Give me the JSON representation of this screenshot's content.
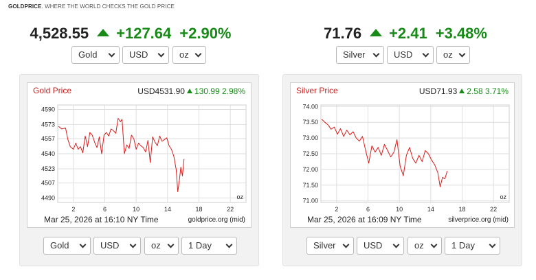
{
  "brand": {
    "name": "GOLDPRICE",
    "tagline": ". WHERE THE WORLD CHECKS THE GOLD PRICE"
  },
  "colors": {
    "up": "#178a17",
    "line": "#dd1a1a",
    "title": "#cc1f1f"
  },
  "gold": {
    "price": "4,528.55",
    "change": "+127.64",
    "percent": "+2.90%",
    "arrow_icon": "up-arrow-icon",
    "top_selects": {
      "metal": "Gold",
      "currency": "USD",
      "unit": "oz"
    },
    "chart": {
      "title": "Gold Price",
      "quote": "USD4531.90",
      "change": "130.99",
      "percent": "2.98%",
      "unit_label": "oz",
      "timestamp": "Mar 25, 2026 at 16:10 NY Time",
      "source": "goldprice.org (mid)"
    },
    "bottom_selects": {
      "metal": "Gold",
      "currency": "USD",
      "unit": "oz",
      "period": "1 Day"
    }
  },
  "silver": {
    "price": "71.76",
    "change": "+2.41",
    "percent": "+3.48%",
    "arrow_icon": "up-arrow-icon",
    "top_selects": {
      "metal": "Silver",
      "currency": "USD",
      "unit": "oz"
    },
    "chart": {
      "title": "Silver Price",
      "quote": "USD71.93",
      "change": "2.58",
      "percent": "3.71%",
      "unit_label": "oz",
      "timestamp": "Mar 25, 2026 at 16:09 NY Time",
      "source": "silverprice.org (mid)"
    },
    "bottom_selects": {
      "metal": "Silver",
      "currency": "USD",
      "unit": "oz",
      "period": "1 Day"
    }
  },
  "chart_data": [
    {
      "type": "line",
      "title": "Gold Price",
      "xlim": [
        0,
        24
      ],
      "ylim": [
        4485,
        4595
      ],
      "x_ticks": [
        "2",
        "6",
        "10",
        "14",
        "18",
        "22"
      ],
      "x_tick_values": [
        2,
        6,
        10,
        14,
        18,
        22
      ],
      "y_ticks": [
        "4590",
        "4573",
        "4557",
        "4540",
        "4523",
        "4507",
        "4490"
      ],
      "y_tick_values": [
        4590,
        4573,
        4557,
        4540,
        4523,
        4507,
        4490
      ],
      "grid": true,
      "series": [
        {
          "x": [
            0.1,
            0.5,
            1.0,
            1.3,
            1.6,
            2.0,
            2.3,
            2.6,
            2.9,
            3.2,
            3.5,
            3.8,
            4.1,
            4.4,
            4.7,
            5.0,
            5.3,
            5.6,
            5.9,
            6.2,
            6.5,
            6.8,
            7.1,
            7.4,
            7.7,
            8.0,
            8.2,
            8.5,
            8.8,
            9.1,
            9.4,
            9.7,
            10.0,
            10.3,
            10.6,
            10.9,
            11.2,
            11.5,
            11.8,
            12.1,
            12.4,
            12.7,
            13.0,
            13.3,
            13.6,
            13.9,
            14.2,
            14.5,
            14.8,
            15.1,
            15.3,
            15.5,
            15.7,
            15.9,
            16.1
          ],
          "y": [
            4571,
            4568,
            4569,
            4556,
            4548,
            4545,
            4552,
            4545,
            4548,
            4541,
            4560,
            4548,
            4564,
            4561,
            4553,
            4547,
            4559,
            4540,
            4561,
            4564,
            4560,
            4568,
            4566,
            4563,
            4580,
            4576,
            4579,
            4540,
            4550,
            4546,
            4561,
            4557,
            4545,
            4552,
            4549,
            4547,
            4542,
            4555,
            4530,
            4559,
            4553,
            4549,
            4560,
            4554,
            4556,
            4558,
            4549,
            4545,
            4537,
            4522,
            4497,
            4510,
            4525,
            4515,
            4534
          ]
        }
      ]
    },
    {
      "type": "line",
      "title": "Silver Price",
      "xlim": [
        0,
        24
      ],
      "ylim": [
        70.95,
        74.05
      ],
      "x_ticks": [
        "2",
        "6",
        "10",
        "14",
        "18",
        "22"
      ],
      "x_tick_values": [
        2,
        6,
        10,
        14,
        18,
        22
      ],
      "y_ticks": [
        "74.00",
        "73.50",
        "73.00",
        "72.50",
        "72.00",
        "71.50",
        "71.00"
      ],
      "y_tick_values": [
        74.0,
        73.5,
        73.0,
        72.5,
        72.0,
        71.5,
        71.0
      ],
      "grid": true,
      "series": [
        {
          "x": [
            0.1,
            0.5,
            0.9,
            1.3,
            1.7,
            2.1,
            2.5,
            2.9,
            3.3,
            3.7,
            4.1,
            4.5,
            4.9,
            5.3,
            5.7,
            6.1,
            6.5,
            6.9,
            7.3,
            7.7,
            8.1,
            8.5,
            8.9,
            9.3,
            9.7,
            10.1,
            10.5,
            10.9,
            11.3,
            11.7,
            12.1,
            12.5,
            12.9,
            13.3,
            13.7,
            14.1,
            14.5,
            14.9,
            15.2,
            15.5,
            15.8,
            16.1
          ],
          "y": [
            73.6,
            73.5,
            73.42,
            73.28,
            73.35,
            73.12,
            73.3,
            73.05,
            73.25,
            73.1,
            73.2,
            73.0,
            72.9,
            73.05,
            72.6,
            72.2,
            72.75,
            72.55,
            72.7,
            72.45,
            72.8,
            72.6,
            72.4,
            72.55,
            72.95,
            72.1,
            71.8,
            72.45,
            72.7,
            72.35,
            72.2,
            72.45,
            72.25,
            72.6,
            72.5,
            72.3,
            72.15,
            71.9,
            71.45,
            71.75,
            71.7,
            71.95
          ]
        }
      ]
    }
  ]
}
